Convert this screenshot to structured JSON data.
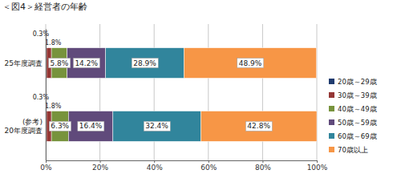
{
  "chart_data": {
    "type": "bar",
    "title": "＜図4＞経営者の年齢",
    "orientation": "horizontal",
    "stacked": true,
    "data_labels": true,
    "grid": true,
    "legend": "right",
    "categories": [
      "25年度調査",
      "(参考)\n20年度調査"
    ],
    "xlim": [
      0,
      100
    ],
    "xticks": [
      {
        "value": 0,
        "label": "0%"
      },
      {
        "value": 20,
        "label": "20%"
      },
      {
        "value": 40,
        "label": "40%"
      },
      {
        "value": 60,
        "label": "60%"
      },
      {
        "value": 80,
        "label": "80%"
      },
      {
        "value": 100,
        "label": "100%"
      }
    ],
    "series": [
      {
        "name": "20歳～29歳",
        "color": "#1f3b6e",
        "values": [
          0.3,
          0.3
        ],
        "value_labels": [
          "0.3%",
          "0.3%"
        ]
      },
      {
        "name": "30歳～39歳",
        "color": "#953735",
        "values": [
          1.8,
          1.8
        ],
        "value_labels": [
          "1.8%",
          "1.8%"
        ]
      },
      {
        "name": "40歳～49歳",
        "color": "#77933c",
        "values": [
          5.8,
          6.3
        ],
        "value_labels": [
          "5.8%",
          "6.3%"
        ]
      },
      {
        "name": "50歳～59歳",
        "color": "#604a7b",
        "values": [
          14.2,
          16.4
        ],
        "value_labels": [
          "14.2%",
          "16.4%"
        ]
      },
      {
        "name": "60歳～69歳",
        "color": "#31859c",
        "values": [
          28.9,
          32.4
        ],
        "value_labels": [
          "28.9%",
          "32.4%"
        ]
      },
      {
        "name": "70歳以上",
        "color": "#f79646",
        "values": [
          48.9,
          42.8
        ],
        "value_labels": [
          "48.9%",
          "42.8%"
        ]
      }
    ]
  }
}
